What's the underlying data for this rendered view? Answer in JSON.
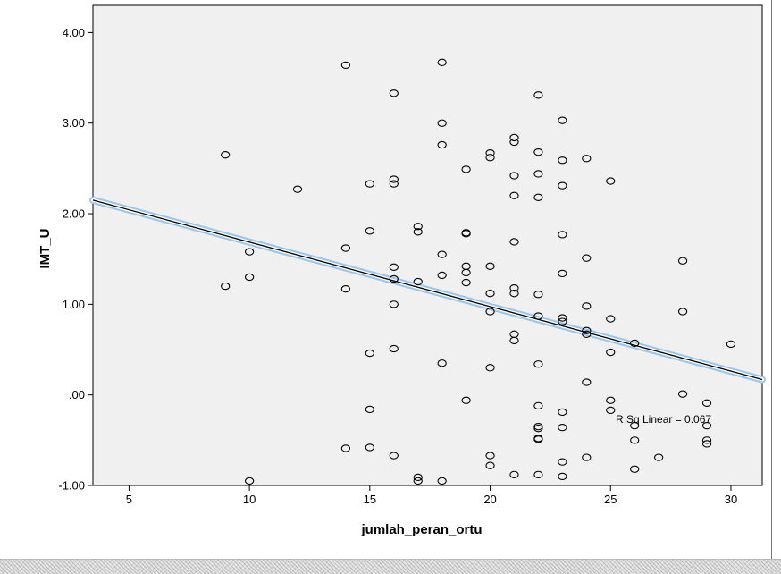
{
  "chart_data": {
    "type": "scatter",
    "xlabel": "jumlah_peran_ortu",
    "ylabel": "IMT_U",
    "xlim": [
      3.5,
      31.3
    ],
    "ylim": [
      -1.0,
      4.3
    ],
    "x_ticks": [
      5,
      10,
      15,
      20,
      25,
      30
    ],
    "x_tick_labels": [
      "5",
      "10",
      "15",
      "20",
      "25",
      "30"
    ],
    "y_ticks": [
      -1,
      0,
      1,
      2,
      3,
      4
    ],
    "y_tick_labels": [
      "-1.00",
      ".00",
      "1.00",
      "2.00",
      "3.00",
      "4.00"
    ],
    "grid": false,
    "plot_background": "#f0f0f0",
    "marker": "open-circle",
    "points": [
      [
        9,
        2.65
      ],
      [
        9,
        1.2
      ],
      [
        10,
        1.58
      ],
      [
        10,
        1.3
      ],
      [
        10,
        -0.95
      ],
      [
        12,
        2.27
      ],
      [
        14,
        3.64
      ],
      [
        14,
        1.62
      ],
      [
        14,
        1.17
      ],
      [
        14,
        -0.59
      ],
      [
        15,
        2.33
      ],
      [
        15,
        1.81
      ],
      [
        15,
        0.46
      ],
      [
        15,
        -0.16
      ],
      [
        15,
        -0.58
      ],
      [
        16,
        3.33
      ],
      [
        16,
        2.38
      ],
      [
        16,
        2.33
      ],
      [
        16,
        1.41
      ],
      [
        16,
        1.28
      ],
      [
        16,
        1.0
      ],
      [
        16,
        0.51
      ],
      [
        16,
        -0.67
      ],
      [
        17,
        1.86
      ],
      [
        17,
        1.8
      ],
      [
        17,
        1.25
      ],
      [
        17,
        -0.91
      ],
      [
        17,
        -0.95
      ],
      [
        18,
        3.67
      ],
      [
        18,
        3.0
      ],
      [
        18,
        2.76
      ],
      [
        18,
        1.55
      ],
      [
        18,
        1.32
      ],
      [
        18,
        0.35
      ],
      [
        18,
        -0.95
      ],
      [
        19,
        2.49
      ],
      [
        19,
        1.79
      ],
      [
        19,
        1.78
      ],
      [
        19,
        1.42
      ],
      [
        19,
        1.35
      ],
      [
        19,
        1.24
      ],
      [
        19,
        -0.06
      ],
      [
        20,
        2.67
      ],
      [
        20,
        2.62
      ],
      [
        20,
        1.42
      ],
      [
        20,
        1.12
      ],
      [
        20,
        0.92
      ],
      [
        20,
        0.3
      ],
      [
        20,
        -0.67
      ],
      [
        20,
        -0.78
      ],
      [
        21,
        2.84
      ],
      [
        21,
        2.79
      ],
      [
        21,
        2.42
      ],
      [
        21,
        2.2
      ],
      [
        21,
        1.69
      ],
      [
        21,
        1.18
      ],
      [
        21,
        1.12
      ],
      [
        21,
        0.67
      ],
      [
        21,
        0.6
      ],
      [
        21,
        -0.88
      ],
      [
        22,
        3.31
      ],
      [
        22,
        2.68
      ],
      [
        22,
        2.44
      ],
      [
        22,
        2.18
      ],
      [
        22,
        1.11
      ],
      [
        22,
        0.87
      ],
      [
        22,
        0.34
      ],
      [
        22,
        -0.12
      ],
      [
        22,
        -0.35
      ],
      [
        22,
        -0.37
      ],
      [
        22,
        -0.48
      ],
      [
        22,
        -0.49
      ],
      [
        22,
        -0.88
      ],
      [
        23,
        3.03
      ],
      [
        23,
        2.59
      ],
      [
        23,
        2.31
      ],
      [
        23,
        1.77
      ],
      [
        23,
        1.34
      ],
      [
        23,
        0.85
      ],
      [
        23,
        0.81
      ],
      [
        23,
        -0.19
      ],
      [
        23,
        -0.36
      ],
      [
        23,
        -0.74
      ],
      [
        23,
        -0.9
      ],
      [
        24,
        2.61
      ],
      [
        24,
        1.51
      ],
      [
        24,
        0.98
      ],
      [
        24,
        0.71
      ],
      [
        24,
        0.67
      ],
      [
        24,
        0.14
      ],
      [
        24,
        -0.69
      ],
      [
        25,
        2.36
      ],
      [
        25,
        0.84
      ],
      [
        25,
        0.47
      ],
      [
        25,
        -0.06
      ],
      [
        25,
        -0.17
      ],
      [
        26,
        0.57
      ],
      [
        26,
        -0.34
      ],
      [
        26,
        -0.5
      ],
      [
        26,
        -0.82
      ],
      [
        27,
        -0.69
      ],
      [
        28,
        1.48
      ],
      [
        28,
        0.92
      ],
      [
        28,
        0.01
      ],
      [
        29,
        -0.09
      ],
      [
        29,
        -0.34
      ],
      [
        29,
        -0.5
      ],
      [
        29,
        -0.54
      ],
      [
        30,
        0.56
      ]
    ],
    "fit_line": {
      "type": "linear",
      "x_range": [
        3.5,
        31.3
      ],
      "y_endpoints": [
        2.15,
        0.17
      ],
      "label": "R Sq Linear = 0.067",
      "line_color": "#000000",
      "halo_color": "#99c4ec"
    },
    "colors": {
      "plot_background": "#f0f0f0",
      "marker_stroke": "#000000"
    }
  }
}
